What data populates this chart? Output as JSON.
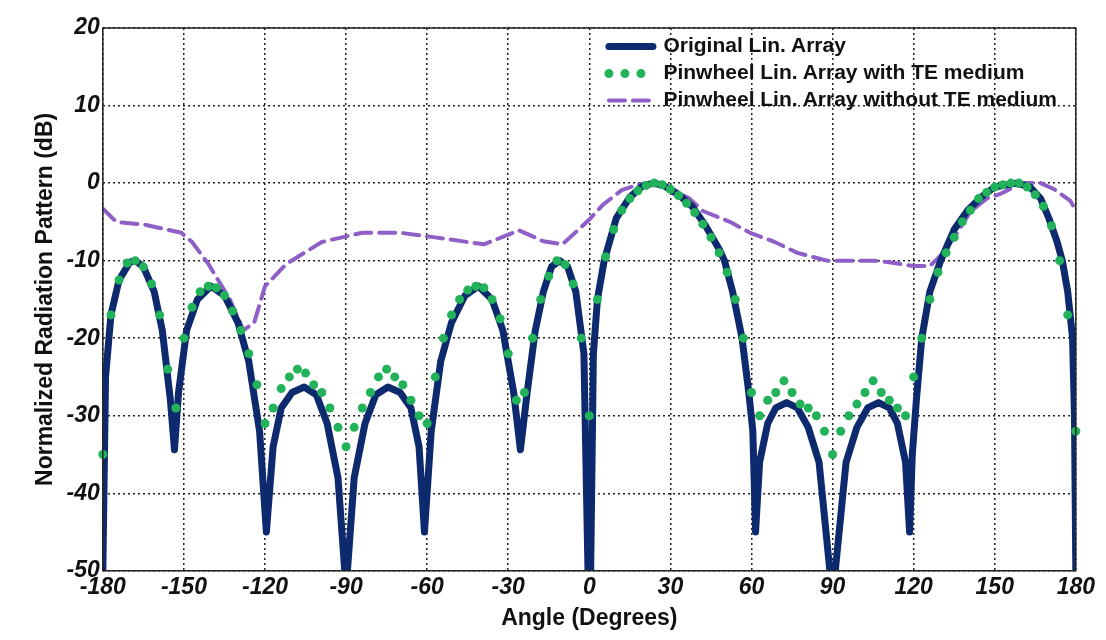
{
  "chart_data": {
    "type": "line",
    "xlabel": "Angle (Degrees)",
    "ylabel": "Normalized Radiation Pattern (dB)",
    "xlim": [
      -180,
      180
    ],
    "xticks": [
      -180,
      -150,
      -120,
      -90,
      -60,
      -30,
      0,
      30,
      60,
      90,
      120,
      150,
      180
    ],
    "ylim": [
      -50,
      20
    ],
    "yticks": [
      -50,
      -40,
      -30,
      -20,
      -10,
      0,
      10,
      20
    ],
    "grid": true,
    "legend": "top",
    "series": [
      {
        "name": "Original Lin. Array",
        "type": "line",
        "color": "#0e2a6e",
        "line_style": "solid",
        "marker": "none",
        "x": [
          -180,
          -179,
          -177,
          -174,
          -170,
          -168,
          -165,
          -161,
          -158,
          -155,
          -153.5,
          -152,
          -149,
          -145,
          -140,
          -135,
          -130,
          -126,
          -122,
          -119.5,
          -117,
          -114,
          -110,
          -105.5,
          -101,
          -97,
          -93,
          -90.5,
          -89.5,
          -87,
          -83,
          -79,
          -74.5,
          -70,
          -66,
          -63,
          -61,
          -58.5,
          -55,
          -51,
          -46,
          -41,
          -36,
          -32,
          -28,
          -25.5,
          -23,
          -20,
          -17,
          -14,
          -11,
          -8,
          -5,
          -2,
          -0.5,
          0.5,
          1.5,
          3,
          5.5,
          10,
          15,
          20,
          24,
          28,
          33,
          38,
          43,
          48,
          50,
          53,
          56.5,
          59,
          60.5,
          61.5,
          63,
          66,
          69,
          73,
          77,
          81,
          85,
          89,
          91,
          95,
          99,
          103,
          107,
          111,
          114,
          117,
          118.5,
          119.5,
          121,
          123,
          126,
          130,
          135,
          140,
          145,
          150,
          158,
          163,
          167,
          170,
          173,
          175,
          177,
          178.8,
          179.5,
          180
        ],
        "values": [
          -50,
          -25,
          -17,
          -12.5,
          -10.2,
          -10,
          -10.8,
          -14,
          -19,
          -28,
          -34.4,
          -27,
          -19,
          -15,
          -13.3,
          -14.5,
          -18,
          -23,
          -32,
          -45,
          -34,
          -29,
          -27,
          -26.3,
          -27.3,
          -31,
          -38,
          -50,
          -50,
          -38,
          -31,
          -27.3,
          -26.3,
          -27,
          -29,
          -34,
          -45,
          -32,
          -23,
          -18,
          -14.5,
          -13.3,
          -15,
          -19,
          -27,
          -34.4,
          -27,
          -19,
          -14,
          -10.8,
          -10,
          -10.8,
          -14,
          -22,
          -50,
          -50,
          -22,
          -15,
          -10,
          -4.5,
          -1.8,
          -0.3,
          0,
          -0.4,
          -1.5,
          -3,
          -5.5,
          -8.5,
          -10,
          -14,
          -20,
          -27,
          -32,
          -45,
          -36,
          -31,
          -29,
          -28.3,
          -29,
          -31.5,
          -36,
          -50,
          -50,
          -36,
          -31.5,
          -29,
          -28.3,
          -29,
          -31,
          -36,
          -45,
          -35,
          -28,
          -20,
          -14,
          -10,
          -6,
          -3.5,
          -1.8,
          -0.5,
          0,
          -0.5,
          -2,
          -4.5,
          -7.5,
          -10,
          -14,
          -20,
          -30,
          -50
        ]
      },
      {
        "name": "Pinwheel Lin. Array with TE medium",
        "type": "scatter",
        "color": "#22b35a",
        "marker": "circle",
        "x": [
          -180,
          -177,
          -174,
          -171,
          -168,
          -165,
          -162,
          -159,
          -156,
          -153,
          -150,
          -147,
          -144,
          -141,
          -138,
          -135,
          -132,
          -129,
          -126,
          -123,
          -120,
          -117,
          -114,
          -111,
          -108,
          -105,
          -102,
          -99,
          -96,
          -93,
          -90,
          -87,
          -84,
          -81,
          -78,
          -75,
          -72,
          -69,
          -66,
          -63,
          -60,
          -57,
          -54,
          -51,
          -48,
          -45,
          -42,
          -39,
          -36,
          -33,
          -30,
          -27,
          -24,
          -21,
          -18,
          -15,
          -12,
          -9,
          -6,
          -3,
          0,
          3,
          6,
          9,
          12,
          15,
          18,
          21,
          24,
          27,
          30,
          33,
          36,
          39,
          42,
          45,
          48,
          51,
          54,
          57,
          60,
          63,
          66,
          69,
          72,
          75,
          78,
          81,
          84,
          87,
          90,
          93,
          96,
          99,
          102,
          105,
          108,
          111,
          114,
          117,
          120,
          123,
          126,
          129,
          132,
          135,
          138,
          141,
          144,
          147,
          150,
          153,
          156,
          159,
          162,
          165,
          168,
          171,
          174,
          177,
          180
        ],
        "values": [
          -35,
          -17,
          -12.5,
          -10.3,
          -10,
          -10.8,
          -13,
          -17,
          -24,
          -29,
          -20,
          -16,
          -14,
          -13.3,
          -13.5,
          -14.5,
          -16.5,
          -19,
          -22,
          -26,
          -31,
          -29,
          -26.5,
          -25,
          -24,
          -24.5,
          -26,
          -27,
          -29,
          -31.5,
          -34,
          -31.5,
          -29,
          -27,
          -25,
          -24,
          -25,
          -26,
          -28,
          -30,
          -31,
          -25,
          -20,
          -17,
          -15,
          -13.8,
          -13.3,
          -13.5,
          -15,
          -17.5,
          -22,
          -28,
          -27,
          -20,
          -15,
          -12,
          -10,
          -10.5,
          -13,
          -20,
          -30,
          -15,
          -9.5,
          -6,
          -3.5,
          -2,
          -1,
          -0.3,
          0,
          -0.2,
          -0.8,
          -1.6,
          -2.6,
          -3.8,
          -5.3,
          -7,
          -9,
          -11.5,
          -15,
          -20,
          -27,
          -30,
          -28,
          -27,
          -25.5,
          -27,
          -28.5,
          -29,
          -30,
          -32,
          -35,
          -32,
          -30,
          -28.5,
          -27,
          -25.5,
          -27,
          -28,
          -29,
          -30,
          -25,
          -20,
          -15,
          -11.5,
          -9,
          -7,
          -5,
          -3.5,
          -2,
          -1.2,
          -0.5,
          -0.2,
          0,
          0,
          -0.5,
          -1.5,
          -3,
          -5.5,
          -10,
          -17,
          -32
        ]
      },
      {
        "name": "Pinwheel Lin. Array without TE medium",
        "type": "line",
        "color": "#8e5fc6",
        "line_style": "dashed",
        "marker": "none",
        "x": [
          -180,
          -175,
          -164,
          -151,
          -147,
          -141,
          -133,
          -128,
          -124,
          -120,
          -112,
          -99,
          -84,
          -70,
          -57,
          -39,
          -26,
          -17,
          -10,
          -4,
          0,
          5,
          12,
          18,
          24,
          30,
          37,
          42,
          52,
          60,
          68,
          77,
          88,
          97,
          105,
          111,
          120,
          126,
          131,
          136,
          141,
          147,
          152,
          160,
          167,
          172,
          178,
          180
        ],
        "values": [
          -3.3,
          -5,
          -5.4,
          -6.4,
          -7.6,
          -10.4,
          -15,
          -19,
          -18,
          -13.3,
          -10.4,
          -7.6,
          -6.4,
          -6.4,
          -7,
          -7.9,
          -6.1,
          -7.5,
          -7.9,
          -6,
          -4.7,
          -2.8,
          -0.9,
          -0.2,
          0,
          -0.6,
          -2,
          -3.6,
          -5,
          -6.5,
          -7.5,
          -9,
          -10,
          -10,
          -10,
          -10.2,
          -10.7,
          -10.7,
          -9,
          -6.5,
          -3.7,
          -2,
          -1.4,
          0,
          0,
          -0.8,
          -2.3,
          -3.5
        ]
      }
    ]
  }
}
